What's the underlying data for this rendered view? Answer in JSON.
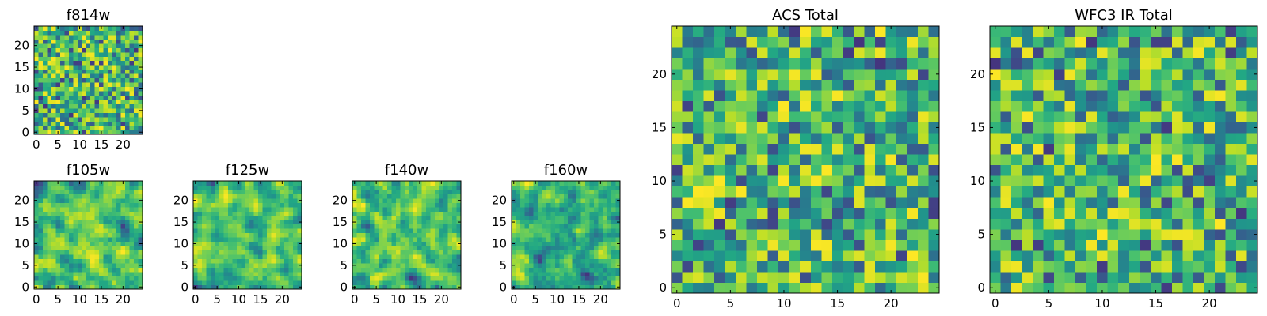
{
  "chart_data": [
    {
      "type": "heatmap",
      "title": "f814w",
      "grid_size": [
        25,
        25
      ],
      "xlim": [
        -0.5,
        24.5
      ],
      "ylim": [
        -0.5,
        24.5
      ],
      "xticks": [
        0,
        5,
        10,
        15,
        20
      ],
      "xtick_labels": [
        "0",
        "5",
        "10",
        "15",
        "20"
      ],
      "yticks": [
        0,
        5,
        10,
        15,
        20
      ],
      "ytick_labels": [
        "0",
        "5",
        "10",
        "15",
        "20"
      ],
      "colormap": "viridis",
      "grid": false,
      "seed": 1101,
      "values_note": "random noise pixel map"
    },
    {
      "type": "heatmap",
      "title": "f105w",
      "grid_size": [
        25,
        25
      ],
      "xlim": [
        -0.5,
        24.5
      ],
      "ylim": [
        -0.5,
        24.5
      ],
      "xticks": [
        0,
        5,
        10,
        15,
        20
      ],
      "xtick_labels": [
        "0",
        "5",
        "10",
        "15",
        "20"
      ],
      "yticks": [
        0,
        5,
        10,
        15,
        20
      ],
      "ytick_labels": [
        "0",
        "5",
        "10",
        "15",
        "20"
      ],
      "colormap": "viridis",
      "grid": false,
      "seed": 2202,
      "values_note": "smoothed noise pixel map"
    },
    {
      "type": "heatmap",
      "title": "f125w",
      "grid_size": [
        25,
        25
      ],
      "xlim": [
        -0.5,
        24.5
      ],
      "ylim": [
        -0.5,
        24.5
      ],
      "xticks": [
        0,
        5,
        10,
        15,
        20
      ],
      "xtick_labels": [
        "0",
        "5",
        "10",
        "15",
        "20"
      ],
      "yticks": [
        0,
        5,
        10,
        15,
        20
      ],
      "ytick_labels": [
        "0",
        "5",
        "10",
        "15",
        "20"
      ],
      "colormap": "viridis",
      "grid": false,
      "seed": 3303,
      "values_note": "smoothed noise pixel map"
    },
    {
      "type": "heatmap",
      "title": "f140w",
      "grid_size": [
        25,
        25
      ],
      "xlim": [
        -0.5,
        24.5
      ],
      "ylim": [
        -0.5,
        24.5
      ],
      "xticks": [
        0,
        5,
        10,
        15,
        20
      ],
      "xtick_labels": [
        "0",
        "5",
        "10",
        "15",
        "20"
      ],
      "yticks": [
        0,
        5,
        10,
        15,
        20
      ],
      "ytick_labels": [
        "0",
        "5",
        "10",
        "15",
        "20"
      ],
      "colormap": "viridis",
      "grid": false,
      "seed": 4404,
      "values_note": "smoothed noise pixel map"
    },
    {
      "type": "heatmap",
      "title": "f160w",
      "grid_size": [
        25,
        25
      ],
      "xlim": [
        -0.5,
        24.5
      ],
      "ylim": [
        -0.5,
        24.5
      ],
      "xticks": [
        0,
        5,
        10,
        15,
        20
      ],
      "xtick_labels": [
        "0",
        "5",
        "10",
        "15",
        "20"
      ],
      "yticks": [
        0,
        5,
        10,
        15,
        20
      ],
      "ytick_labels": [
        "0",
        "5",
        "10",
        "15",
        "20"
      ],
      "colormap": "viridis",
      "grid": false,
      "seed": 5505,
      "values_note": "smoothed noise pixel map"
    },
    {
      "type": "heatmap",
      "title": "ACS Total",
      "grid_size": [
        25,
        25
      ],
      "xlim": [
        -0.5,
        24.5
      ],
      "ylim": [
        -0.5,
        24.5
      ],
      "xticks": [
        0,
        5,
        10,
        15,
        20
      ],
      "xtick_labels": [
        "0",
        "5",
        "10",
        "15",
        "20"
      ],
      "yticks": [
        0,
        5,
        10,
        15,
        20
      ],
      "ytick_labels": [
        "0",
        "5",
        "10",
        "15",
        "20"
      ],
      "colormap": "viridis",
      "grid": false,
      "seed": 6606,
      "values_note": "random noise pixel map"
    },
    {
      "type": "heatmap",
      "title": "WFC3 IR Total",
      "grid_size": [
        25,
        25
      ],
      "xlim": [
        -0.5,
        24.5
      ],
      "ylim": [
        -0.5,
        24.5
      ],
      "xticks": [
        0,
        5,
        10,
        15,
        20
      ],
      "xtick_labels": [
        "0",
        "5",
        "10",
        "15",
        "20"
      ],
      "yticks": [
        0,
        5,
        10,
        15,
        20
      ],
      "ytick_labels": [
        "0",
        "5",
        "10",
        "15",
        "20"
      ],
      "colormap": "viridis",
      "grid": false,
      "seed": 7707,
      "values_note": "random noise pixel map"
    }
  ]
}
